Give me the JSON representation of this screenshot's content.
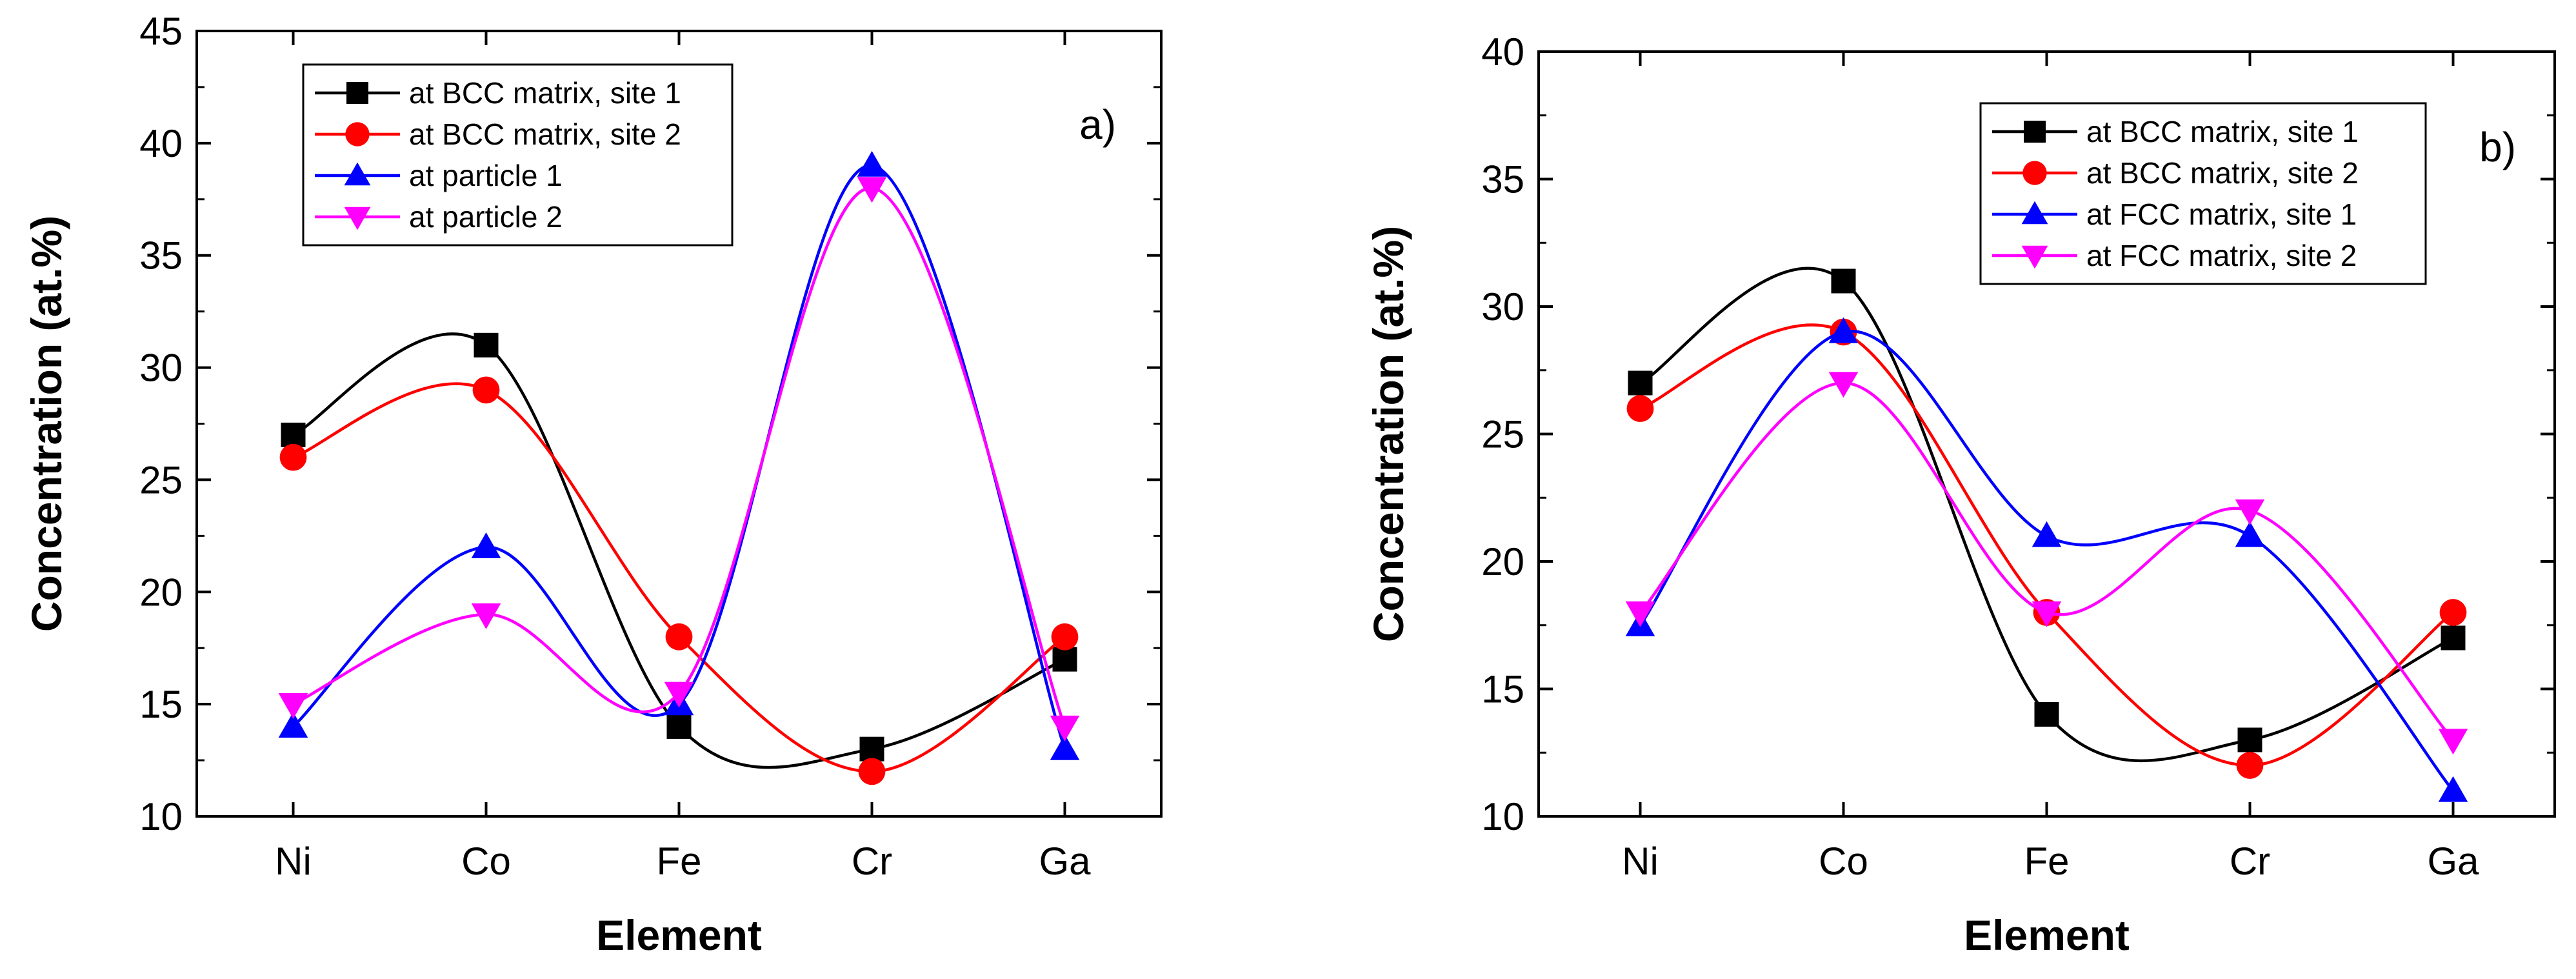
{
  "chart_data": [
    {
      "type": "line",
      "panel_label": "a)",
      "xlabel": "Element",
      "ylabel": "Concentration (at.%)",
      "categories": [
        "Ni",
        "Co",
        "Fe",
        "Cr",
        "Ga"
      ],
      "ylim": [
        10,
        45
      ],
      "yticks": [
        "10",
        "15",
        "20",
        "25",
        "30",
        "35",
        "40",
        "45"
      ],
      "legend_position": "top-left",
      "series": [
        {
          "name": "at BCC matrix, site 1",
          "color": "#000000",
          "marker": "square",
          "values": [
            27,
            31,
            14,
            13,
            17
          ]
        },
        {
          "name": "at BCC matrix, site 2",
          "color": "#ff0000",
          "marker": "circle",
          "values": [
            26,
            29,
            18,
            12,
            18
          ]
        },
        {
          "name": "at particle 1",
          "color": "#0000ff",
          "marker": "triangle-up",
          "values": [
            14,
            22,
            15,
            39,
            13
          ]
        },
        {
          "name": "at particle 2",
          "color": "#ff00ff",
          "marker": "triangle-down",
          "values": [
            15,
            19,
            15.5,
            38,
            14
          ]
        }
      ]
    },
    {
      "type": "line",
      "panel_label": "b)",
      "xlabel": "Element",
      "ylabel": "Concentration (at.%)",
      "categories": [
        "Ni",
        "Co",
        "Fe",
        "Cr",
        "Ga"
      ],
      "ylim": [
        10,
        40
      ],
      "yticks": [
        "10",
        "15",
        "20",
        "25",
        "30",
        "35",
        "40"
      ],
      "legend_position": "top-right",
      "series": [
        {
          "name": "at BCC matrix, site 1",
          "color": "#000000",
          "marker": "square",
          "values": [
            27,
            31,
            14,
            13,
            17
          ]
        },
        {
          "name": "at BCC matrix, site 2",
          "color": "#ff0000",
          "marker": "circle",
          "values": [
            26,
            29,
            18,
            12,
            18
          ]
        },
        {
          "name": "at FCC matrix, site 1",
          "color": "#0000ff",
          "marker": "triangle-up",
          "values": [
            17.5,
            29,
            21,
            21,
            11
          ]
        },
        {
          "name": "at FCC matrix, site 2",
          "color": "#ff00ff",
          "marker": "triangle-down",
          "values": [
            18,
            27,
            18,
            22,
            13
          ]
        }
      ]
    }
  ]
}
